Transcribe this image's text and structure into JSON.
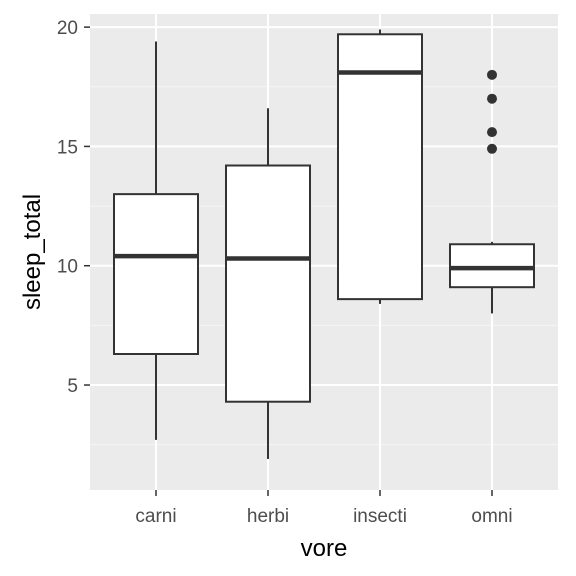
{
  "chart_data": {
    "type": "boxplot",
    "title": "",
    "xlabel": "vore",
    "ylabel": "sleep_total",
    "categories": [
      "carni",
      "herbi",
      "insecti",
      "omni"
    ],
    "ylim": [
      0.6,
      20.55
    ],
    "yticks": [
      5,
      10,
      15,
      20
    ],
    "ytick_labels": [
      "5",
      "10",
      "15",
      "20"
    ],
    "grid": true,
    "legend": "none",
    "boxes": [
      {
        "category": "carni",
        "whisker_low": 2.7,
        "q1": 6.3,
        "median": 10.4,
        "q3": 13.0,
        "whisker_high": 19.4,
        "outliers": []
      },
      {
        "category": "herbi",
        "whisker_low": 1.9,
        "q1": 4.3,
        "median": 10.3,
        "q3": 14.2,
        "whisker_high": 16.6,
        "outliers": []
      },
      {
        "category": "insecti",
        "whisker_low": 8.4,
        "q1": 8.6,
        "median": 18.1,
        "q3": 19.7,
        "whisker_high": 19.9,
        "outliers": []
      },
      {
        "category": "omni",
        "whisker_low": 8.0,
        "q1": 9.1,
        "median": 9.9,
        "q3": 10.9,
        "whisker_high": 11.0,
        "outliers": [
          18.0,
          17.0,
          15.6,
          14.9
        ]
      }
    ],
    "colors": {
      "panel_background": "#ebebeb",
      "grid_major": "#ffffff",
      "grid_minor": "#f5f5f5",
      "box_fill": "#ffffff",
      "box_line": "#333333",
      "tick_text": "#4d4d4d"
    }
  }
}
